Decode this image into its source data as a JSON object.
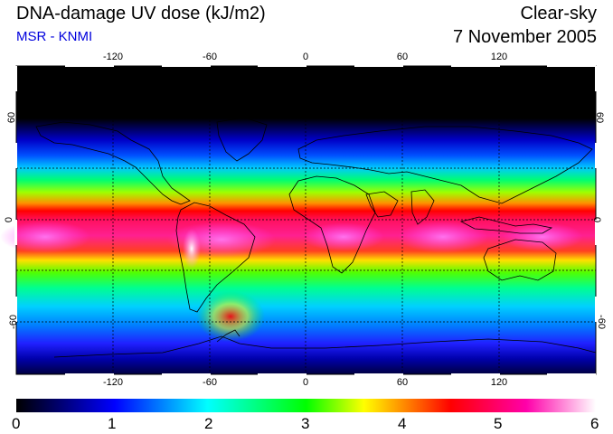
{
  "header": {
    "title": "DNA-damage UV dose (kJ/m2)",
    "subtitle": "MSR - KNMI",
    "condition": "Clear-sky",
    "date": "7 November 2005"
  },
  "axes": {
    "longitude_ticks": [
      "-120",
      "-60",
      "0",
      "60",
      "120"
    ],
    "latitude_ticks_left": [
      "60",
      "0",
      "-60"
    ],
    "latitude_ticks_right": [
      "60",
      "0",
      "-60"
    ]
  },
  "map": {
    "projection": "equirectangular",
    "lon_range": [
      -180,
      180
    ],
    "lat_range": [
      -90,
      90
    ],
    "gridline_lons": [
      -120,
      -60,
      0,
      60,
      120
    ],
    "gridline_lats": [
      60,
      30,
      0,
      -30,
      -60
    ]
  },
  "colorbar": {
    "labels": [
      "0",
      "1",
      "2",
      "3",
      "4",
      "5",
      "6"
    ],
    "min": 0,
    "max": 6,
    "unit": "kJ/m2",
    "colors": [
      "#000000",
      "#0000ff",
      "#00ffff",
      "#00ff00",
      "#ffff00",
      "#ff0000",
      "#ff00aa",
      "#ffffff"
    ]
  }
}
